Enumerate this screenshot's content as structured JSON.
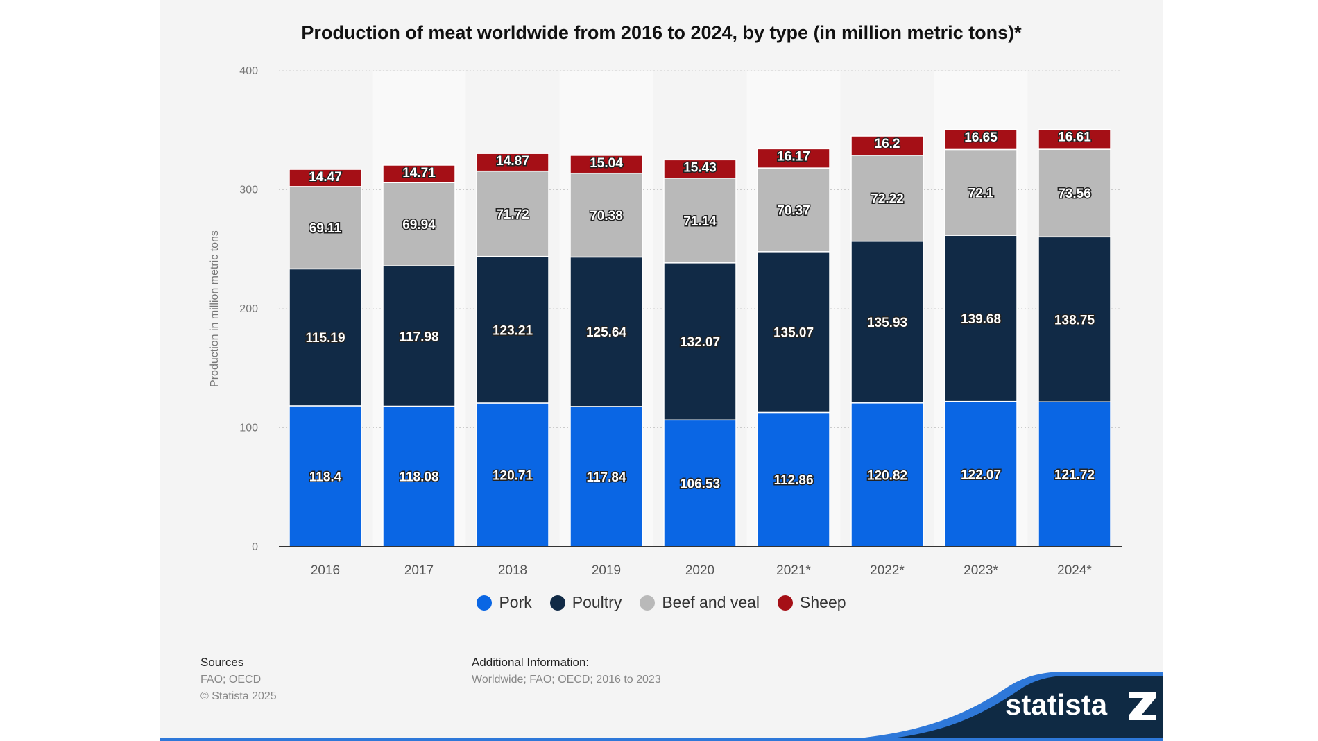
{
  "chart_data": {
    "type": "bar",
    "stacked": true,
    "title": "Production of meat worldwide from 2016 to 2024, by type (in million metric tons)*",
    "xlabel": "",
    "ylabel": "Production in million metric tons",
    "ylim": [
      0,
      400
    ],
    "yticks": [
      "0",
      "100",
      "200",
      "300",
      "400"
    ],
    "grid": true,
    "legend_position": "bottom",
    "categories": [
      "2016",
      "2017",
      "2018",
      "2019",
      "2020",
      "2021*",
      "2022*",
      "2023*",
      "2024*"
    ],
    "series": [
      {
        "name": "Pork",
        "color": "#0a66e4",
        "values": [
          118.4,
          118.08,
          120.71,
          117.84,
          106.53,
          112.86,
          120.82,
          122.07,
          121.72
        ]
      },
      {
        "name": "Poultry",
        "color": "#112a46",
        "values": [
          115.19,
          117.98,
          123.21,
          125.64,
          132.07,
          135.07,
          135.93,
          139.68,
          138.75
        ]
      },
      {
        "name": "Beef and veal",
        "color": "#b9b9b9",
        "values": [
          69.11,
          69.94,
          71.72,
          70.38,
          71.14,
          70.37,
          72.22,
          72.1,
          73.56
        ]
      },
      {
        "name": "Sheep",
        "color": "#a50f16",
        "values": [
          14.47,
          14.71,
          14.87,
          15.04,
          15.43,
          16.17,
          16.2,
          16.65,
          16.61
        ]
      }
    ]
  },
  "footer": {
    "sources_label": "Sources",
    "sources": "FAO; OECD",
    "copyright": "© Statista 2025",
    "additional_label": "Additional Information:",
    "additional": "Worldwide; FAO; OECD; 2016 to 2023"
  },
  "logo": {
    "text": "statista",
    "navy": "#0f2a44",
    "blue": "#2e78d9"
  }
}
